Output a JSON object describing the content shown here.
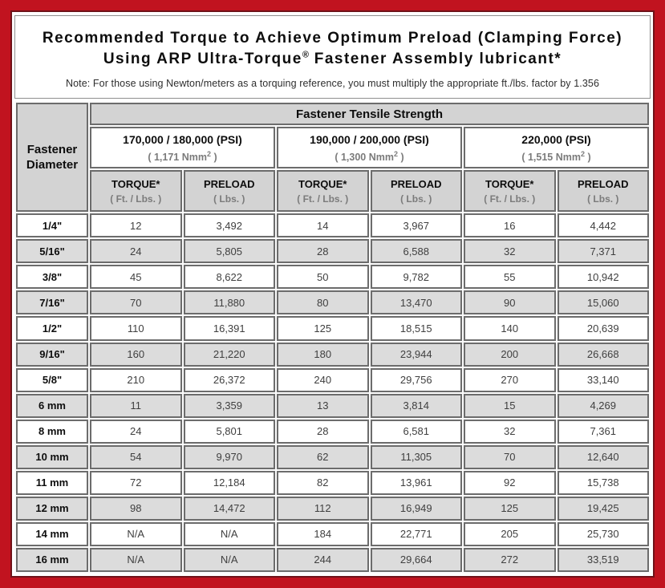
{
  "colors": {
    "frame_red": "#c1131f",
    "frame_dark_line": "#6f1218",
    "header_gray": "#d3d3d3",
    "row_stripe_gray": "#dcdcdc",
    "cell_border": "#6c6c6c"
  },
  "title": {
    "line1": "Recommended Torque to Achieve Optimum Preload (Clamping Force)",
    "line2_pre": "Using ARP Ultra-Torque",
    "line2_sup": "®",
    "line2_post": " Fastener Assembly lubricant*",
    "note": "Note: For those using Newton/meters as a torquing reference, you must multiply the appropriate ft./lbs. factor by 1.356"
  },
  "table": {
    "tensile_strength_header": "Fastener Tensile Strength",
    "corner": {
      "line1": "Fastener",
      "line2": "Diameter"
    },
    "groups": [
      {
        "psi": "170,000 / 180,000 (PSI)",
        "nmm_pre": "( 1,171 Nmm",
        "nmm_sup": "2",
        "nmm_post": " )"
      },
      {
        "psi": "190,000 / 200,000 (PSI)",
        "nmm_pre": "( 1,300 Nmm",
        "nmm_sup": "2",
        "nmm_post": " )"
      },
      {
        "psi": "220,000 (PSI)",
        "nmm_pre": "( 1,515 Nmm",
        "nmm_sup": "2",
        "nmm_post": " )"
      }
    ],
    "subheaders": [
      {
        "label": "TORQUE*",
        "unit": "( Ft. / Lbs. )"
      },
      {
        "label": "PRELOAD",
        "unit": "( Lbs. )"
      },
      {
        "label": "TORQUE*",
        "unit": "( Ft. / Lbs. )"
      },
      {
        "label": "PRELOAD",
        "unit": "( Lbs. )"
      },
      {
        "label": "TORQUE*",
        "unit": "( Ft. / Lbs. )"
      },
      {
        "label": "PRELOAD",
        "unit": "( Lbs. )"
      }
    ],
    "rows": [
      {
        "diameter": "1/4\"",
        "values": [
          "12",
          "3,492",
          "14",
          "3,967",
          "16",
          "4,442"
        ]
      },
      {
        "diameter": "5/16\"",
        "values": [
          "24",
          "5,805",
          "28",
          "6,588",
          "32",
          "7,371"
        ]
      },
      {
        "diameter": "3/8\"",
        "values": [
          "45",
          "8,622",
          "50",
          "9,782",
          "55",
          "10,942"
        ]
      },
      {
        "diameter": "7/16\"",
        "values": [
          "70",
          "11,880",
          "80",
          "13,470",
          "90",
          "15,060"
        ]
      },
      {
        "diameter": "1/2\"",
        "values": [
          "110",
          "16,391",
          "125",
          "18,515",
          "140",
          "20,639"
        ]
      },
      {
        "diameter": "9/16\"",
        "values": [
          "160",
          "21,220",
          "180",
          "23,944",
          "200",
          "26,668"
        ]
      },
      {
        "diameter": "5/8\"",
        "values": [
          "210",
          "26,372",
          "240",
          "29,756",
          "270",
          "33,140"
        ]
      },
      {
        "diameter": "6 mm",
        "values": [
          "11",
          "3,359",
          "13",
          "3,814",
          "15",
          "4,269"
        ]
      },
      {
        "diameter": "8 mm",
        "values": [
          "24",
          "5,801",
          "28",
          "6,581",
          "32",
          "7,361"
        ]
      },
      {
        "diameter": "10 mm",
        "values": [
          "54",
          "9,970",
          "62",
          "11,305",
          "70",
          "12,640"
        ]
      },
      {
        "diameter": "11 mm",
        "values": [
          "72",
          "12,184",
          "82",
          "13,961",
          "92",
          "15,738"
        ]
      },
      {
        "diameter": "12 mm",
        "values": [
          "98",
          "14,472",
          "112",
          "16,949",
          "125",
          "19,425"
        ]
      },
      {
        "diameter": "14 mm",
        "values": [
          "N/A",
          "N/A",
          "184",
          "22,771",
          "205",
          "25,730"
        ]
      },
      {
        "diameter": "16 mm",
        "values": [
          "N/A",
          "N/A",
          "244",
          "29,664",
          "272",
          "33,519"
        ]
      }
    ]
  }
}
